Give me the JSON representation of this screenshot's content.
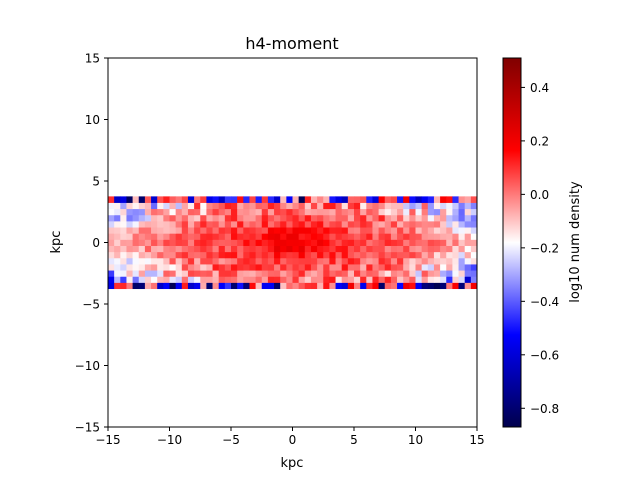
{
  "chart_data": {
    "type": "heatmap",
    "title": "h4-moment",
    "xlabel": "kpc",
    "ylabel": "kpc",
    "xlim": [
      -15,
      15
    ],
    "ylim": [
      -15,
      15
    ],
    "xticks": [
      -15,
      -10,
      -5,
      0,
      5,
      10,
      15
    ],
    "yticks": [
      -15,
      -10,
      -5,
      0,
      5,
      10,
      15
    ],
    "xtick_labels": [
      "−15",
      "−10",
      "−5",
      "0",
      "5",
      "10",
      "15"
    ],
    "ytick_labels": [
      "−15",
      "−10",
      "−5",
      "0",
      "5",
      "10",
      "15"
    ],
    "grid": false,
    "colormap": "seismic",
    "colorbar": {
      "label": "log10 num density",
      "vmin": -0.87,
      "vmax": 0.51,
      "ticks": [
        -0.8,
        -0.6,
        -0.4,
        -0.2,
        0.0,
        0.2,
        0.4
      ],
      "tick_labels": [
        "−0.8",
        "−0.6",
        "−0.4",
        "−0.2",
        "0.0",
        "0.2",
        "0.4"
      ]
    },
    "data_extent": {
      "x": [
        -15,
        15
      ],
      "y": [
        -3.75,
        3.75
      ]
    },
    "grid_shape": {
      "nx": 60,
      "ny": 15
    },
    "value_summary": {
      "core_value": 0.08,
      "center_peak": 0.2,
      "edge_low": -0.87,
      "typical_range": [
        -0.3,
        0.2
      ]
    }
  }
}
